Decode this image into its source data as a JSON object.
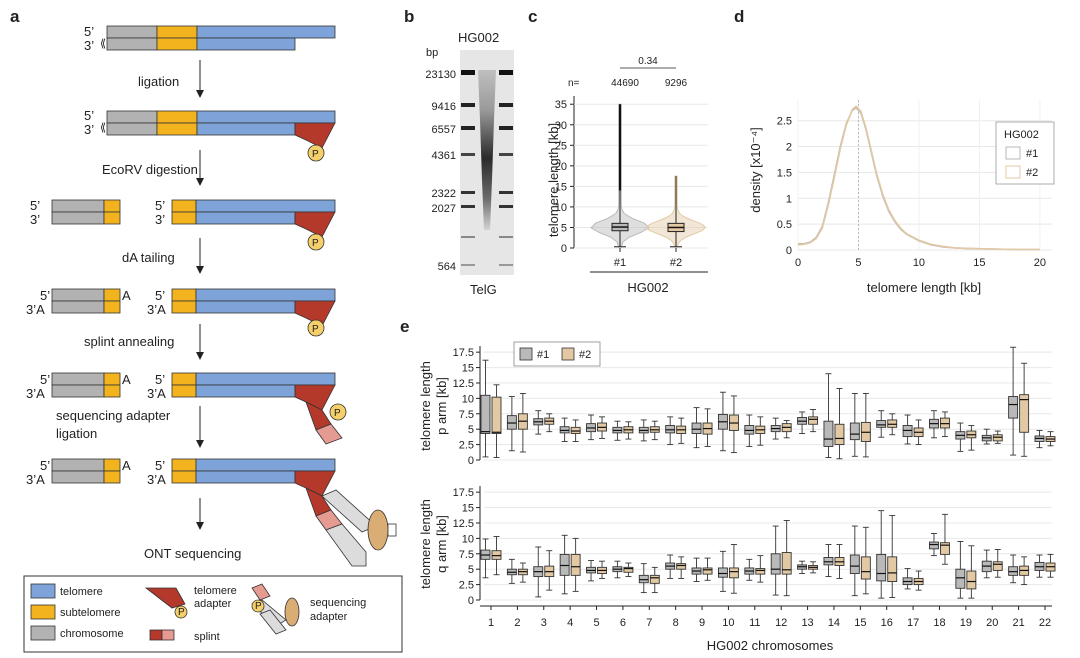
{
  "colors": {
    "telomere": "#7ea3d8",
    "subtelomere": "#f2b31f",
    "chromosome": "#b2b2b2",
    "adapter": "#b5392b",
    "adapter_light": "#e59a92",
    "seq_adapter": "#dcdcdc",
    "phosphate": "#f4cf6a",
    "motor": "#d9ad73",
    "rep1": "#b9b9b9",
    "rep2": "#e3c9a3"
  },
  "panel_a": {
    "letter": "a",
    "steps": [
      "ligation",
      "EcoRV digestion",
      "dA tailing",
      "splint annealing",
      "sequencing adapter",
      "ligation",
      "ONT sequencing"
    ],
    "strand5": "5’",
    "strand3": "3’",
    "tail_a": "A",
    "tail_3a": "3’A",
    "phosphate": "P",
    "legend": {
      "telomere": "telomere",
      "subtelomere": "subtelomere",
      "chromosome": "chromosome",
      "telomere_adapter_1": "telomere",
      "telomere_adapter_2": "adapter",
      "splint": "splint",
      "sequencing_adapter_1": "sequencing",
      "sequencing_adapter_2": "adapter"
    }
  },
  "panel_b": {
    "letter": "b",
    "title": "HG002",
    "unit": "bp",
    "markers": [
      "23130",
      "9416",
      "6557",
      "4361",
      "2322",
      "2027",
      "564"
    ],
    "probe": "TelG"
  },
  "panel_c": {
    "letter": "c",
    "n_label": "n=",
    "n_values": [
      "44690",
      "9296"
    ],
    "p_value": "0.34",
    "ylabel": "telomere length [kb]",
    "groups": [
      "#1",
      "#2"
    ],
    "xlabel": "HG002"
  },
  "chart_data": [
    {
      "type": "violin",
      "title": "",
      "xlabel": "HG002",
      "ylabel": "telomere length [kb]",
      "ylim": [
        0,
        37
      ],
      "yticks": [
        0,
        5,
        10,
        15,
        20,
        25,
        30,
        35
      ],
      "categories": [
        "#1",
        "#2"
      ],
      "n": [
        44690,
        9296
      ],
      "median": [
        5.1,
        5.0
      ],
      "q1": [
        4.2,
        4.0
      ],
      "q3": [
        6.0,
        6.0
      ],
      "whisker_low": [
        0.3,
        0.3
      ],
      "whisker_high": [
        14.0,
        17.5
      ],
      "max_outlier": [
        35.0,
        17.5
      ],
      "p_value": 0.34
    },
    {
      "type": "line",
      "xlabel": "telomere length [kb]",
      "ylabel": "density [x10⁻⁴]",
      "xlim": [
        0,
        21
      ],
      "ylim": [
        0,
        2.9
      ],
      "xticks": [
        0,
        5,
        10,
        15,
        20
      ],
      "yticks": [
        0,
        0.5,
        1,
        1.5,
        2,
        2.5
      ],
      "legend_title": "HG002",
      "series": [
        {
          "name": "#1",
          "x": [
            0,
            0.5,
            1,
            1.5,
            2,
            2.5,
            3,
            3.5,
            4,
            4.5,
            4.8,
            5.2,
            5.6,
            6,
            6.5,
            7,
            7.5,
            8,
            8.5,
            9,
            10,
            11,
            12,
            13,
            14,
            16,
            18,
            20
          ],
          "y": [
            0.12,
            0.12,
            0.15,
            0.24,
            0.45,
            0.9,
            1.45,
            2.0,
            2.45,
            2.7,
            2.75,
            2.65,
            2.35,
            1.95,
            1.45,
            1.05,
            0.75,
            0.55,
            0.4,
            0.3,
            0.18,
            0.1,
            0.06,
            0.04,
            0.03,
            0.02,
            0.01,
            0.01
          ]
        },
        {
          "name": "#2",
          "x": [
            0,
            0.5,
            1,
            1.5,
            2,
            2.5,
            3,
            3.5,
            4,
            4.5,
            4.8,
            5.2,
            5.6,
            6,
            6.5,
            7,
            7.5,
            8,
            8.5,
            9,
            10,
            11,
            12,
            13,
            14,
            16,
            18,
            20
          ],
          "y": [
            0.1,
            0.11,
            0.14,
            0.22,
            0.42,
            0.86,
            1.4,
            1.96,
            2.42,
            2.72,
            2.78,
            2.68,
            2.38,
            1.98,
            1.48,
            1.08,
            0.78,
            0.57,
            0.42,
            0.31,
            0.19,
            0.11,
            0.07,
            0.04,
            0.03,
            0.02,
            0.01,
            0.01
          ]
        }
      ]
    },
    {
      "type": "box",
      "title": "p arm",
      "xlabel": "HG002 chromosomes",
      "ylabel": "telomere length p arm [kb]",
      "ylim": [
        0,
        18.5
      ],
      "yticks": [
        0,
        2.5,
        5,
        7.5,
        10,
        12.5,
        15,
        17.5
      ],
      "categories": [
        "1",
        "2",
        "3",
        "4",
        "5",
        "6",
        "7",
        "8",
        "9",
        "10",
        "11",
        "12",
        "13",
        "14",
        "15",
        "16",
        "17",
        "18",
        "19",
        "20",
        "21",
        "22"
      ],
      "series": [
        {
          "name": "#1",
          "boxes": [
            [
              0.5,
              4.3,
              4.6,
              10.5,
              16.2
            ],
            [
              1.5,
              5.0,
              6.0,
              7.2,
              10.3
            ],
            [
              4.2,
              5.7,
              6.2,
              6.7,
              8.0
            ],
            [
              3.0,
              4.4,
              4.8,
              5.4,
              6.8
            ],
            [
              3.3,
              4.6,
              5.2,
              5.9,
              7.3
            ],
            [
              3.2,
              4.4,
              4.8,
              5.3,
              6.3
            ],
            [
              3.1,
              4.4,
              4.8,
              5.3,
              6.5
            ],
            [
              2.5,
              4.4,
              4.9,
              5.6,
              7.0
            ],
            [
              2.0,
              4.3,
              5.0,
              6.0,
              8.5
            ],
            [
              1.5,
              5.0,
              6.2,
              7.4,
              11.0
            ],
            [
              2.2,
              4.2,
              4.8,
              5.6,
              7.3
            ],
            [
              3.4,
              4.6,
              5.1,
              5.6,
              6.8
            ],
            [
              4.3,
              5.8,
              6.3,
              6.9,
              7.8
            ],
            [
              0.4,
              2.2,
              3.4,
              6.3,
              14.0
            ],
            [
              0.6,
              3.3,
              4.2,
              6.0,
              10.8
            ],
            [
              3.7,
              5.3,
              5.7,
              6.4,
              8.0
            ],
            [
              2.6,
              3.8,
              4.8,
              5.6,
              7.3
            ],
            [
              3.6,
              5.2,
              5.9,
              6.6,
              8.0
            ],
            [
              1.4,
              3.4,
              4.0,
              4.6,
              6.0
            ],
            [
              2.6,
              3.1,
              3.6,
              4.0,
              5.0
            ],
            [
              0.8,
              6.8,
              9.0,
              10.3,
              18.3
            ],
            [
              2.0,
              3.0,
              3.5,
              3.9,
              4.8
            ]
          ]
        },
        {
          "name": "#2",
          "boxes": [
            [
              0.4,
              4.3,
              4.5,
              10.2,
              12.2
            ],
            [
              1.3,
              5.0,
              6.3,
              7.5,
              10.8
            ],
            [
              4.6,
              5.8,
              6.3,
              6.8,
              7.5
            ],
            [
              3.0,
              4.3,
              4.7,
              5.3,
              6.5
            ],
            [
              3.5,
              4.7,
              5.3,
              6.0,
              7.0
            ],
            [
              3.4,
              4.4,
              4.9,
              5.4,
              6.2
            ],
            [
              3.3,
              4.5,
              4.9,
              5.4,
              6.3
            ],
            [
              2.7,
              4.3,
              4.9,
              5.5,
              6.8
            ],
            [
              2.2,
              4.2,
              5.1,
              6.0,
              8.3
            ],
            [
              1.2,
              4.8,
              6.0,
              7.3,
              10.4
            ],
            [
              2.4,
              4.3,
              4.9,
              5.5,
              7.0
            ],
            [
              3.6,
              4.6,
              5.3,
              5.9,
              6.4
            ],
            [
              4.6,
              5.8,
              6.6,
              7.0,
              8.2
            ],
            [
              0.2,
              2.5,
              3.5,
              5.8,
              11.6
            ],
            [
              0.5,
              3.0,
              4.5,
              6.1,
              10.8
            ],
            [
              4.1,
              5.3,
              5.8,
              6.5,
              7.5
            ],
            [
              2.5,
              3.8,
              4.5,
              5.2,
              6.5
            ],
            [
              3.8,
              5.2,
              5.9,
              6.8,
              7.8
            ],
            [
              1.6,
              3.6,
              4.1,
              4.7,
              5.6
            ],
            [
              2.7,
              3.1,
              3.7,
              4.1,
              4.7
            ],
            [
              0.6,
              4.5,
              9.8,
              10.6,
              15.7
            ],
            [
              2.3,
              3.0,
              3.4,
              3.8,
              4.6
            ]
          ]
        }
      ]
    },
    {
      "type": "box",
      "title": "q arm",
      "xlabel": "HG002 chromosomes",
      "ylabel": "telomere length q arm [kb]",
      "ylim": [
        0,
        18.5
      ],
      "yticks": [
        0,
        2.5,
        5,
        7.5,
        10,
        12.5,
        15,
        17.5
      ],
      "categories": [
        "1",
        "2",
        "3",
        "4",
        "5",
        "6",
        "7",
        "8",
        "9",
        "10",
        "11",
        "12",
        "13",
        "14",
        "15",
        "16",
        "17",
        "18",
        "19",
        "20",
        "21",
        "22"
      ],
      "series": [
        {
          "name": "#1",
          "boxes": [
            [
              3.6,
              6.6,
              7.3,
              8.1,
              9.9
            ],
            [
              2.7,
              4.1,
              4.5,
              5.0,
              6.6
            ],
            [
              0.5,
              3.8,
              4.6,
              5.4,
              8.6
            ],
            [
              1.0,
              4.0,
              5.6,
              7.4,
              10.5
            ],
            [
              3.1,
              4.4,
              4.8,
              5.3,
              6.4
            ],
            [
              3.6,
              4.6,
              5.0,
              5.4,
              6.3
            ],
            [
              1.2,
              2.8,
              3.3,
              4.0,
              5.9
            ],
            [
              3.5,
              5.0,
              5.5,
              6.0,
              7.3
            ],
            [
              3.0,
              4.2,
              4.7,
              5.2,
              6.8
            ],
            [
              1.4,
              3.7,
              4.3,
              5.2,
              7.9
            ],
            [
              3.2,
              4.2,
              4.7,
              5.2,
              6.6
            ],
            [
              0.8,
              4.2,
              5.0,
              7.5,
              12.0
            ],
            [
              4.3,
              5.0,
              5.4,
              5.7,
              6.3
            ],
            [
              3.8,
              5.7,
              6.2,
              6.9,
              9.0
            ],
            [
              0.7,
              4.3,
              5.5,
              7.3,
              12.0
            ],
            [
              0.3,
              3.1,
              4.3,
              7.4,
              14.5
            ],
            [
              1.8,
              2.5,
              3.0,
              3.6,
              5.1
            ],
            [
              7.2,
              8.3,
              9.0,
              9.4,
              10.8
            ],
            [
              0.3,
              1.9,
              3.6,
              5.0,
              9.5
            ],
            [
              3.6,
              4.6,
              5.5,
              6.3,
              8.1
            ],
            [
              2.8,
              4.0,
              4.6,
              5.4,
              7.3
            ],
            [
              3.7,
              4.8,
              5.4,
              6.1,
              7.3
            ]
          ]
        },
        {
          "name": "#2",
          "boxes": [
            [
              4.1,
              6.6,
              7.2,
              8.0,
              10.3
            ],
            [
              2.9,
              4.1,
              4.6,
              5.0,
              6.0
            ],
            [
              1.6,
              3.8,
              4.6,
              5.5,
              8.0
            ],
            [
              1.4,
              4.0,
              5.4,
              7.4,
              10.0
            ],
            [
              3.5,
              4.3,
              4.8,
              5.3,
              6.3
            ],
            [
              3.8,
              4.5,
              5.1,
              5.3,
              6.0
            ],
            [
              1.2,
              2.7,
              3.6,
              4.0,
              5.3
            ],
            [
              3.5,
              5.0,
              5.6,
              5.9,
              7.0
            ],
            [
              3.2,
              4.2,
              4.9,
              5.2,
              6.8
            ],
            [
              1.1,
              3.6,
              4.6,
              5.2,
              9.0
            ],
            [
              2.9,
              4.2,
              4.8,
              5.1,
              7.2
            ],
            [
              0.7,
              4.2,
              4.9,
              7.7,
              12.9
            ],
            [
              4.4,
              5.0,
              5.3,
              5.6,
              6.2
            ],
            [
              3.5,
              5.6,
              6.2,
              6.9,
              9.0
            ],
            [
              1.0,
              3.4,
              4.6,
              7.0,
              11.8
            ],
            [
              0.4,
              3.0,
              4.4,
              7.0,
              13.7
            ],
            [
              1.6,
              2.5,
              3.0,
              3.5,
              4.7
            ],
            [
              5.8,
              7.4,
              8.9,
              9.3,
              13.9
            ],
            [
              0.3,
              1.8,
              3.0,
              4.7,
              8.8
            ],
            [
              3.7,
              4.8,
              5.8,
              6.2,
              8.2
            ],
            [
              2.5,
              4.0,
              4.8,
              5.5,
              7.0
            ],
            [
              3.7,
              4.7,
              5.4,
              6.0,
              7.4
            ]
          ]
        }
      ]
    }
  ],
  "panel_d": {
    "letter": "d",
    "xlabel": "telomere length [kb]",
    "ylabel": "density [x10⁻⁴]",
    "legend_title": "HG002",
    "legend_items": [
      "#1",
      "#2"
    ]
  },
  "panel_e": {
    "letter": "e",
    "ylabel_p_1": "telomere length",
    "ylabel_p_2": "p arm [kb]",
    "ylabel_q_1": "telomere length",
    "ylabel_q_2": "q arm [kb]",
    "xlabel": "HG002 chromosomes",
    "legend_items": [
      "#1",
      "#2"
    ]
  }
}
